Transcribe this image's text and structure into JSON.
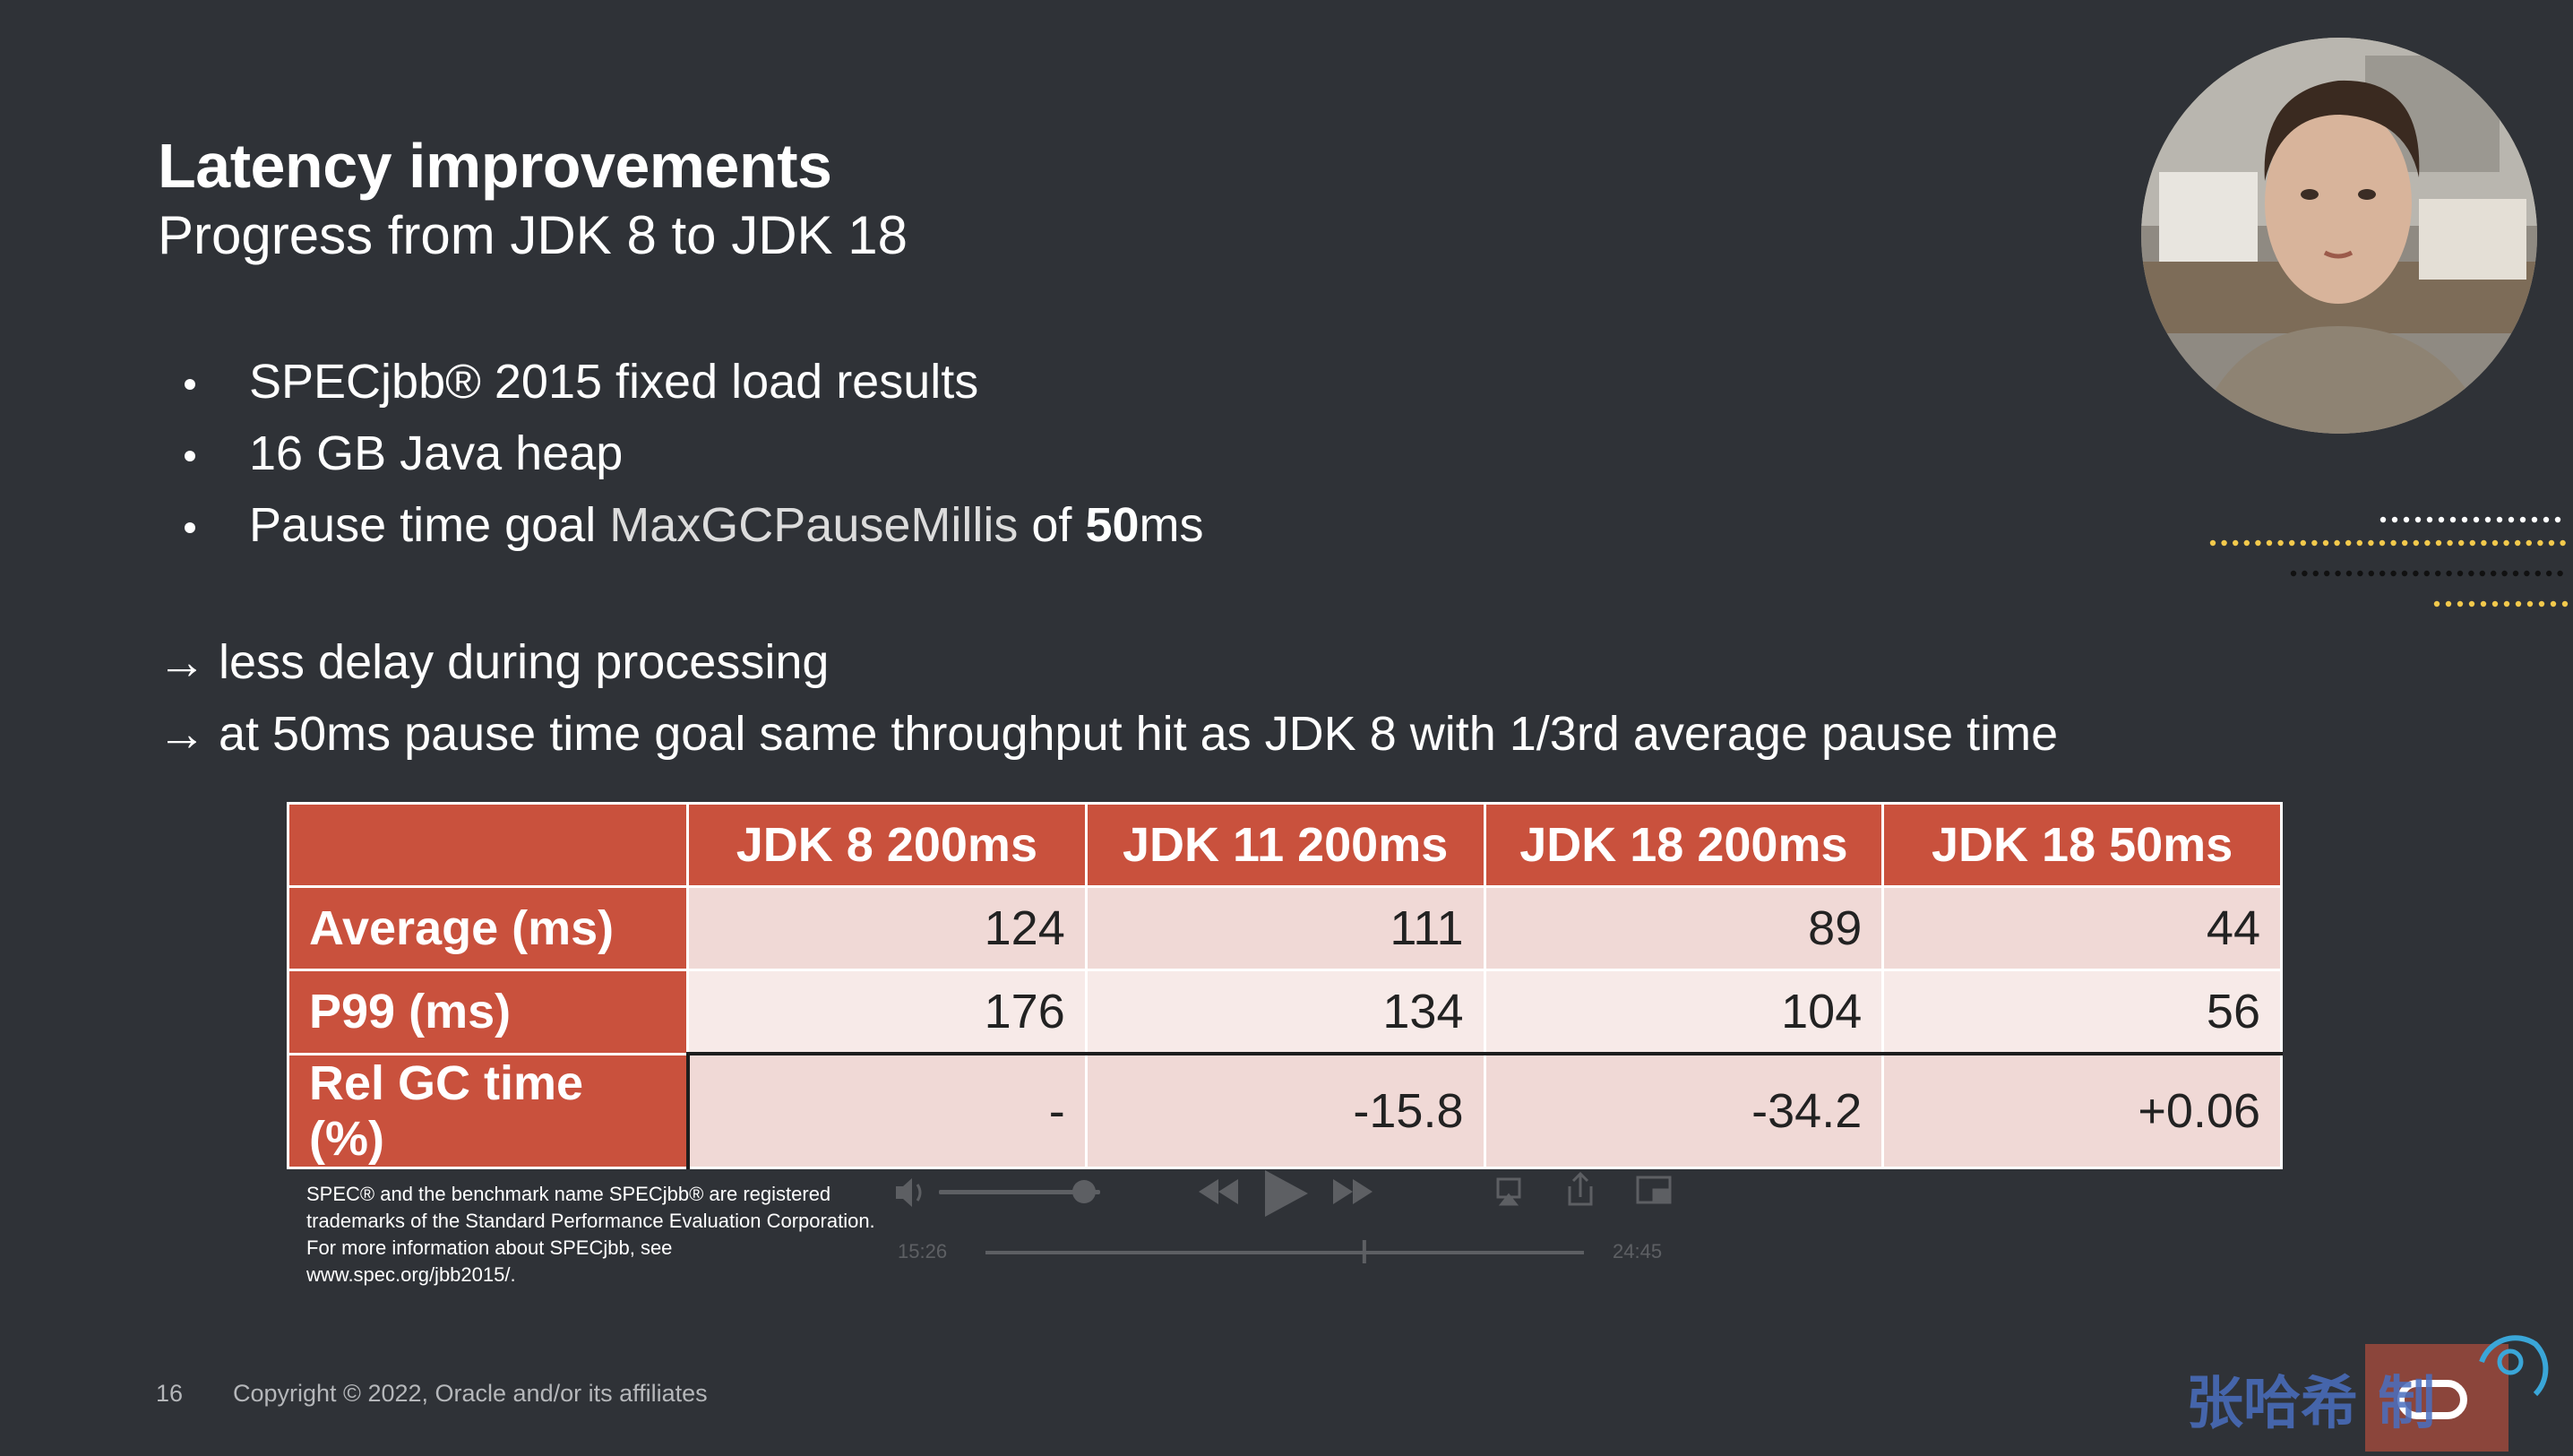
{
  "slide": {
    "title": "Latency improvements",
    "subtitle": "Progress from JDK 8 to JDK 18",
    "bullets": [
      "SPECjbb® 2015 fixed load results",
      "16 GB Java heap"
    ],
    "bullet3": {
      "prefix": "Pause time goal",
      "flag": "MaxGCPauseMillis",
      "of": "of",
      "value": "50",
      "unit": "ms"
    },
    "arrow_symbol": "→",
    "arrows": [
      "less delay during processing",
      "at 50ms pause time goal same throughput hit as JDK 8 with 1/3rd average pause time"
    ],
    "table": {
      "columns": [
        "JDK 8 200ms",
        "JDK 11 200ms",
        "JDK 18 200ms",
        "JDK 18 50ms"
      ],
      "rows": [
        {
          "label": "Average (ms)",
          "values": [
            "124",
            "111",
            "89",
            "44"
          ]
        },
        {
          "label": "P99 (ms)",
          "values": [
            "176",
            "134",
            "104",
            "56"
          ]
        },
        {
          "label": "Rel GC time (%)",
          "values": [
            "-",
            "-15.8",
            "-34.2",
            "+0.06"
          ]
        }
      ]
    },
    "footnote": [
      "SPEC® and the benchmark name SPECjbb® are registered",
      "trademarks of the Standard Performance Evaluation Corporation.",
      "For more information about SPECjbb, see",
      "www.spec.org/jbb2015/."
    ],
    "page_number": "16",
    "copyright": "Copyright © 2022, Oracle and/or its affiliates"
  },
  "player": {
    "elapsed": "15:26",
    "remaining": "24:45",
    "volume_level": 0.9,
    "progress_fraction": 0.63,
    "icons": [
      "volume-icon",
      "rewind-icon",
      "play-icon",
      "fast-forward-icon",
      "airplay-icon",
      "share-icon",
      "picture-in-picture-icon"
    ]
  },
  "watermark": {
    "text": "张哈希 制"
  },
  "colors": {
    "background": "#2f3237",
    "table_header": "#c9513d",
    "table_row_light": "#f7eae8",
    "table_row_dark": "#f0d9d6"
  }
}
